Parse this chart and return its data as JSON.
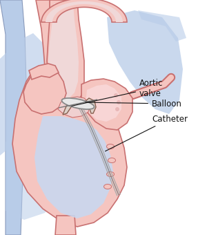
{
  "bg_color": "#ffffff",
  "heart_fill": "#f5c5c0",
  "heart_stroke": "#c87070",
  "chamber_fill": "#c8d8f0",
  "balloon_fill": "#e8e8e8",
  "balloon_stroke": "#888888",
  "catheter_color": "#999999",
  "annotation_color": "#111111",
  "lung_fill": "#b8cce8",
  "label_aortic_valve": "Aortic\nvalve",
  "label_balloon": "Balloon",
  "label_catheter": "Catheter",
  "label_fontsize": 8.5,
  "figsize": [
    3.0,
    3.4
  ],
  "dpi": 100
}
